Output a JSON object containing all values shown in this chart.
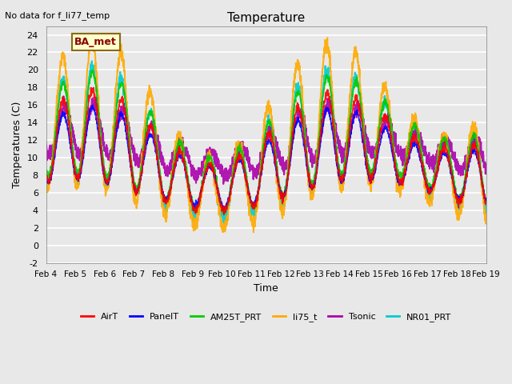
{
  "title": "Temperature",
  "xlabel": "Time",
  "ylabel": "Temperatures (C)",
  "no_data_text": "No data for f_li77_temp",
  "ba_met_label": "BA_met",
  "ylim": [
    -2,
    25
  ],
  "yticks": [
    -2,
    0,
    2,
    4,
    6,
    8,
    10,
    12,
    14,
    16,
    18,
    20,
    22,
    24
  ],
  "xtick_labels": [
    "Feb 4",
    "Feb 5",
    "Feb 6",
    "Feb 7",
    "Feb 8",
    "Feb 9",
    "Feb 10",
    "Feb 11",
    "Feb 12",
    "Feb 13",
    "Feb 14",
    "Feb 15",
    "Feb 16",
    "Feb 17",
    "Feb 18",
    "Feb 19"
  ],
  "series": {
    "AirT": {
      "color": "#ff0000",
      "lw": 1.2
    },
    "PanelT": {
      "color": "#0000ff",
      "lw": 1.2
    },
    "AM25T_PRT": {
      "color": "#00cc00",
      "lw": 1.2
    },
    "li75_t": {
      "color": "#ffaa00",
      "lw": 1.5
    },
    "Tsonic": {
      "color": "#aa00aa",
      "lw": 1.5
    },
    "NR01_PRT": {
      "color": "#00cccc",
      "lw": 1.5
    }
  },
  "bg_color": "#e8e8e8",
  "plot_bg": "#f0f0f0"
}
